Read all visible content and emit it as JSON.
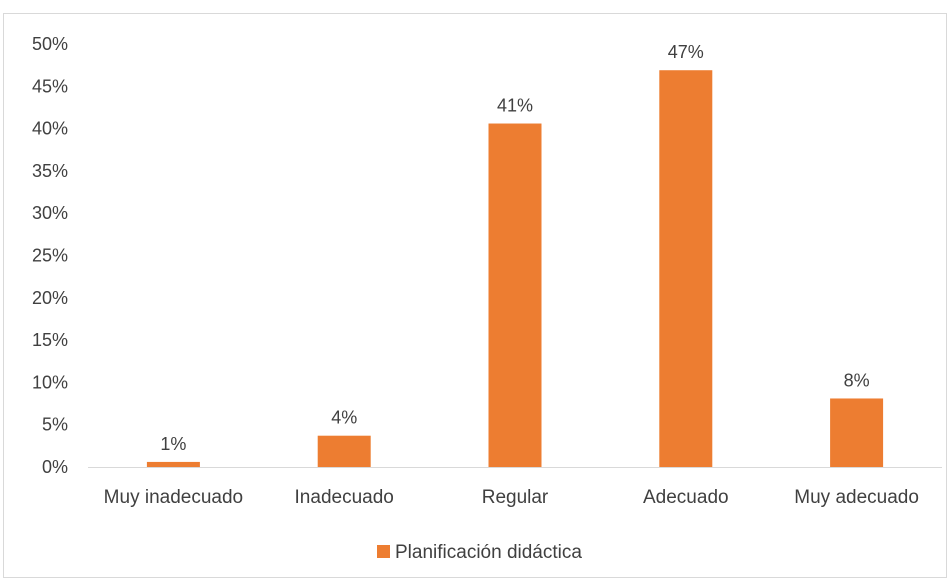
{
  "chart_data": {
    "type": "bar",
    "categories": [
      "Muy inadecuado",
      "Inadecuado",
      "Regular",
      "Adecuado",
      "Muy adecuado"
    ],
    "series": [
      {
        "name": "Planificación didáctica",
        "values": [
          0.6,
          3.7,
          40.6,
          46.9,
          8.1
        ],
        "labels": [
          "1%",
          "4%",
          "41%",
          "47%",
          "8%"
        ],
        "color": "#ED7D31"
      }
    ],
    "y_ticks": [
      "0%",
      "5%",
      "10%",
      "15%",
      "20%",
      "25%",
      "30%",
      "35%",
      "40%",
      "45%",
      "50%"
    ],
    "ylim": [
      0,
      50
    ],
    "grid": false,
    "legend": "bottom",
    "title": "",
    "xlabel": "",
    "ylabel": ""
  }
}
